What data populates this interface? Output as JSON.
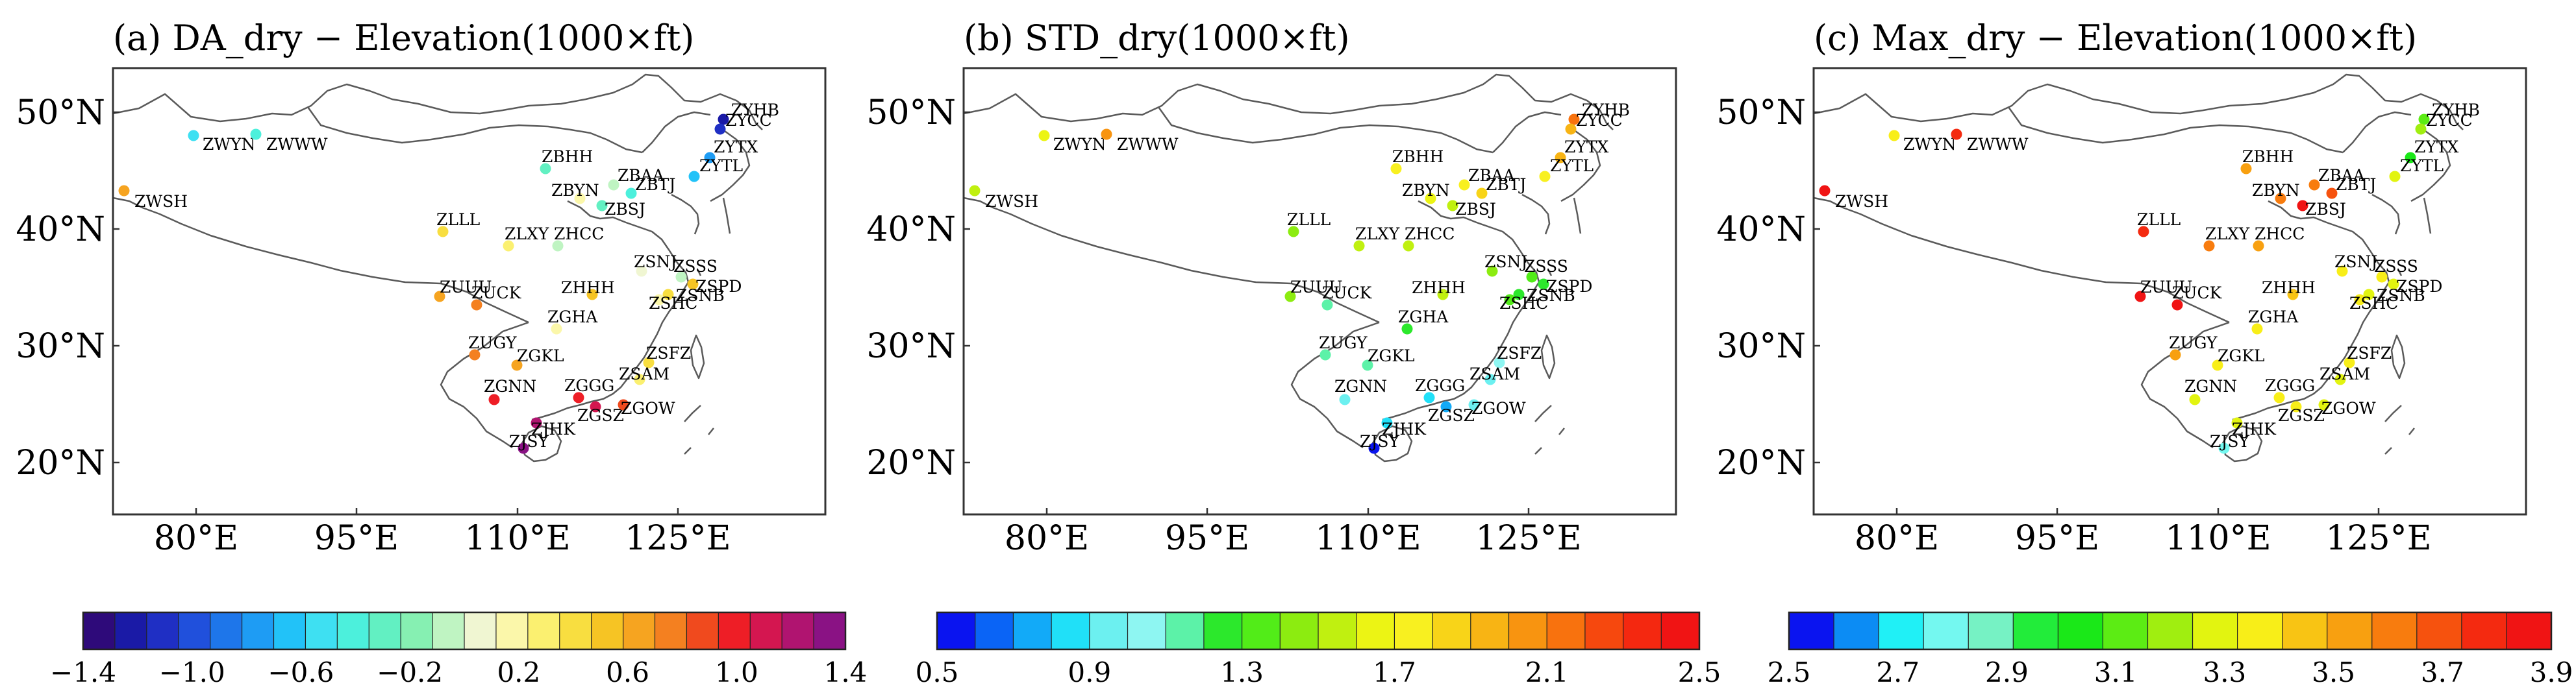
{
  "panels": [
    {
      "id": "a",
      "title": "(a) DA_dry − Elevation(1000×ft)",
      "lat_labels": [
        "50°N",
        "40°N",
        "30°N",
        "20°N"
      ],
      "lon_labels": [
        "80°E",
        "95°E",
        "110°E",
        "125°E"
      ],
      "colorbar": {
        "colors": [
          "#2e0a7a",
          "#1a1aa6",
          "#1f2fc4",
          "#2050dc",
          "#1e76ea",
          "#1e9cf4",
          "#22c2f8",
          "#3ee0f2",
          "#4cf0dc",
          "#62f0c2",
          "#86f0b2",
          "#bff4c2",
          "#f0f6d2",
          "#fbf7aa",
          "#fbf070",
          "#f8de40",
          "#f6c424",
          "#f6a420",
          "#f48020",
          "#f04a1e",
          "#ee1e26",
          "#d41650",
          "#b01470",
          "#8a1284"
        ],
        "tick_labels": [
          "−1.4",
          "−1.0",
          "−0.6",
          "−0.2",
          "0.2",
          "0.6",
          "1.0",
          "1.4"
        ]
      },
      "stations": [
        {
          "name": "ZYHB",
          "color": "#1a1aa6"
        },
        {
          "name": "ZYCC",
          "color": "#1f2fc4"
        },
        {
          "name": "ZYTX",
          "color": "#1e9cf4"
        },
        {
          "name": "ZYTL",
          "color": "#22c2f8"
        },
        {
          "name": "ZWYN",
          "color": "#3ee0f2"
        },
        {
          "name": "ZWWW",
          "color": "#4cf0dc"
        },
        {
          "name": "ZWSH",
          "color": "#f6a420"
        },
        {
          "name": "ZBHH",
          "color": "#62f0c2"
        },
        {
          "name": "ZBAA",
          "color": "#bff4c2"
        },
        {
          "name": "ZBTJ",
          "color": "#4cf0dc"
        },
        {
          "name": "ZBYN",
          "color": "#fbf7aa"
        },
        {
          "name": "ZBSJ",
          "color": "#62f0c2"
        },
        {
          "name": "ZLLL",
          "color": "#f8de40"
        },
        {
          "name": "ZLXY",
          "color": "#fbf070"
        },
        {
          "name": "ZHCC",
          "color": "#bff4c2"
        },
        {
          "name": "ZSNJ",
          "color": "#f0f6d2"
        },
        {
          "name": "ZSSS",
          "color": "#bff4c2"
        },
        {
          "name": "ZSPD",
          "color": "#f6c424"
        },
        {
          "name": "ZSNB",
          "color": "#f8de40"
        },
        {
          "name": "ZSHC",
          "color": "#fbf7aa"
        },
        {
          "name": "ZHHH",
          "color": "#f6c424"
        },
        {
          "name": "ZUUU",
          "color": "#f6a420"
        },
        {
          "name": "ZUCK",
          "color": "#f48020"
        },
        {
          "name": "ZGHA",
          "color": "#fbf7aa"
        },
        {
          "name": "ZUGY",
          "color": "#f48020"
        },
        {
          "name": "ZGKL",
          "color": "#f6a420"
        },
        {
          "name": "ZSFZ",
          "color": "#f8de40"
        },
        {
          "name": "ZSAM",
          "color": "#fbf070"
        },
        {
          "name": "ZGNN",
          "color": "#ee1e26"
        },
        {
          "name": "ZGGG",
          "color": "#ee1e26"
        },
        {
          "name": "ZGSZ",
          "color": "#d41650"
        },
        {
          "name": "ZGOW",
          "color": "#f04a1e"
        },
        {
          "name": "ZJHK",
          "color": "#b01470"
        },
        {
          "name": "ZJSY",
          "color": "#8a1284"
        }
      ]
    },
    {
      "id": "b",
      "title": "(b) STD_dry(1000×ft)",
      "lat_labels": [
        "50°N",
        "40°N",
        "30°N",
        "20°N"
      ],
      "lon_labels": [
        "80°E",
        "95°E",
        "110°E",
        "125°E"
      ],
      "colorbar": {
        "colors": [
          "#0a14f0",
          "#0a64f6",
          "#12aaf8",
          "#20e0f8",
          "#6cf0f0",
          "#8ef6f2",
          "#5cf2a8",
          "#2ce82c",
          "#52ec18",
          "#8cec10",
          "#c0f010",
          "#ecf414",
          "#f8f020",
          "#f8d418",
          "#f8b414",
          "#f89410",
          "#f8720e",
          "#f6480e",
          "#f42810",
          "#f01414"
        ],
        "tick_labels": [
          "0.5",
          "0.9",
          "1.3",
          "1.7",
          "2.1",
          "2.5"
        ]
      },
      "stations": [
        {
          "name": "ZYHB",
          "color": "#f8720e"
        },
        {
          "name": "ZYCC",
          "color": "#f8b414"
        },
        {
          "name": "ZYTX",
          "color": "#f8b414"
        },
        {
          "name": "ZYTL",
          "color": "#f8f020"
        },
        {
          "name": "ZWYN",
          "color": "#ecf414"
        },
        {
          "name": "ZWWW",
          "color": "#f89410"
        },
        {
          "name": "ZWSH",
          "color": "#c0f010"
        },
        {
          "name": "ZBHH",
          "color": "#f8f020"
        },
        {
          "name": "ZBAA",
          "color": "#f8f020"
        },
        {
          "name": "ZBTJ",
          "color": "#f8d418"
        },
        {
          "name": "ZBYN",
          "color": "#ecf414"
        },
        {
          "name": "ZBSJ",
          "color": "#c0f010"
        },
        {
          "name": "ZLLL",
          "color": "#8cec10"
        },
        {
          "name": "ZLXY",
          "color": "#c0f010"
        },
        {
          "name": "ZHCC",
          "color": "#c0f010"
        },
        {
          "name": "ZSNJ",
          "color": "#8cec10"
        },
        {
          "name": "ZSSS",
          "color": "#52ec18"
        },
        {
          "name": "ZSPD",
          "color": "#2ce82c"
        },
        {
          "name": "ZSNB",
          "color": "#2ce82c"
        },
        {
          "name": "ZSHC",
          "color": "#52ec18"
        },
        {
          "name": "ZHHH",
          "color": "#c0f010"
        },
        {
          "name": "ZUUU",
          "color": "#8cec10"
        },
        {
          "name": "ZUCK",
          "color": "#5cf2a8"
        },
        {
          "name": "ZGHA",
          "color": "#2ce82c"
        },
        {
          "name": "ZUGY",
          "color": "#5cf2a8"
        },
        {
          "name": "ZGKL",
          "color": "#5cf2a8"
        },
        {
          "name": "ZSFZ",
          "color": "#8ef6f2"
        },
        {
          "name": "ZSAM",
          "color": "#6cf0f0"
        },
        {
          "name": "ZGNN",
          "color": "#6cf0f0"
        },
        {
          "name": "ZGGG",
          "color": "#20e0f8"
        },
        {
          "name": "ZGSZ",
          "color": "#12aaf8"
        },
        {
          "name": "ZGOW",
          "color": "#6cf0f0"
        },
        {
          "name": "ZJHK",
          "color": "#20e0f8"
        },
        {
          "name": "ZJSY",
          "color": "#0a14f0"
        }
      ]
    },
    {
      "id": "c",
      "title": "(c) Max_dry − Elevation(1000×ft)",
      "lat_labels": [
        "50°N",
        "40°N",
        "30°N",
        "20°N"
      ],
      "lon_labels": [
        "80°E",
        "95°E",
        "110°E",
        "125°E"
      ],
      "colorbar": {
        "colors": [
          "#0a14f0",
          "#0c8cf4",
          "#20f0f6",
          "#74f8f0",
          "#76f2c4",
          "#22ec3a",
          "#1ae818",
          "#5cec14",
          "#a0ee10",
          "#e2f410",
          "#f8ee18",
          "#f8c414",
          "#f8a010",
          "#f87c0e",
          "#f6520e",
          "#f42a10",
          "#f01414"
        ],
        "tick_labels": [
          "2.5",
          "2.7",
          "2.9",
          "3.1",
          "3.3",
          "3.5",
          "3.7",
          "3.9"
        ]
      },
      "stations": [
        {
          "name": "ZYHB",
          "color": "#5cec14"
        },
        {
          "name": "ZYCC",
          "color": "#a0ee10"
        },
        {
          "name": "ZYTX",
          "color": "#1ae818"
        },
        {
          "name": "ZYTL",
          "color": "#e2f410"
        },
        {
          "name": "ZWYN",
          "color": "#f8ee18"
        },
        {
          "name": "ZWWW",
          "color": "#f42a10"
        },
        {
          "name": "ZWSH",
          "color": "#f01414"
        },
        {
          "name": "ZBHH",
          "color": "#f8a010"
        },
        {
          "name": "ZBAA",
          "color": "#f87c0e"
        },
        {
          "name": "ZBTJ",
          "color": "#f6520e"
        },
        {
          "name": "ZBYN",
          "color": "#f87c0e"
        },
        {
          "name": "ZBSJ",
          "color": "#f01414"
        },
        {
          "name": "ZLLL",
          "color": "#f42a10"
        },
        {
          "name": "ZLXY",
          "color": "#f87c0e"
        },
        {
          "name": "ZHCC",
          "color": "#f8a010"
        },
        {
          "name": "ZSNJ",
          "color": "#f8ee18"
        },
        {
          "name": "ZSSS",
          "color": "#f8ee18"
        },
        {
          "name": "ZSPD",
          "color": "#e2f410"
        },
        {
          "name": "ZSNB",
          "color": "#e2f410"
        },
        {
          "name": "ZSHC",
          "color": "#f8ee18"
        },
        {
          "name": "ZHHH",
          "color": "#f8c414"
        },
        {
          "name": "ZUUU",
          "color": "#f01414"
        },
        {
          "name": "ZUCK",
          "color": "#f01414"
        },
        {
          "name": "ZGHA",
          "color": "#f8ee18"
        },
        {
          "name": "ZUGY",
          "color": "#f8a010"
        },
        {
          "name": "ZGKL",
          "color": "#f8ee18"
        },
        {
          "name": "ZSFZ",
          "color": "#f8ee18"
        },
        {
          "name": "ZSAM",
          "color": "#e2f410"
        },
        {
          "name": "ZGNN",
          "color": "#e2f410"
        },
        {
          "name": "ZGGG",
          "color": "#f8ee18"
        },
        {
          "name": "ZGSZ",
          "color": "#f8ee18"
        },
        {
          "name": "ZGOW",
          "color": "#e2f410"
        },
        {
          "name": "ZJHK",
          "color": "#e2f410"
        },
        {
          "name": "ZJSY",
          "color": "#74f8f0"
        }
      ]
    }
  ]
}
